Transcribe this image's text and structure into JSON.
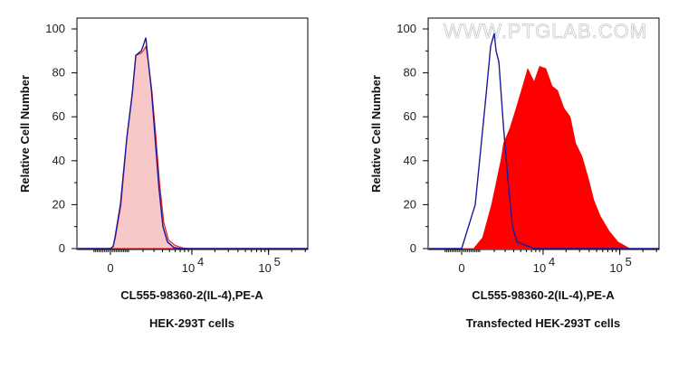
{
  "chart_data": [
    {
      "type": "area",
      "caption": "HEK-293T cells",
      "xlabel": "CL555-98360-2(IL-4),PE-A",
      "ylabel": "Relative Cell Number",
      "x_scale": "biexponential",
      "xlim": [
        -2000,
        320000
      ],
      "ylim": [
        0,
        100
      ],
      "x_ticks": [
        {
          "value": 0,
          "label": "0"
        },
        {
          "value": 10000,
          "label": "10",
          "exp": "4"
        },
        {
          "value": 100000,
          "label": "10",
          "exp": "5"
        }
      ],
      "y_ticks": [
        0,
        20,
        40,
        60,
        80,
        100
      ],
      "grid": false,
      "series": [
        {
          "color": "#f8c8c8",
          "stroke": "#e02020",
          "filled": true,
          "x": [
            -2000,
            0,
            150,
            260,
            560,
            920,
            1250,
            1480,
            1870,
            2010,
            2240,
            2420,
            2780,
            3180,
            3620,
            4150,
            4850,
            5950,
            7600,
            9000,
            320000
          ],
          "y": [
            0,
            0,
            1,
            5,
            20,
            52,
            72,
            88,
            89,
            90,
            92,
            86,
            72,
            52,
            30,
            12,
            4,
            1.5,
            0.3,
            0,
            0
          ]
        },
        {
          "color": "#1a1aa0",
          "filled": false,
          "x": [
            -2000,
            0,
            143,
            240,
            532,
            892,
            1227,
            1468,
            1864,
            2006,
            2235,
            2395,
            2744,
            3128,
            3546,
            4060,
            4692,
            5740,
            7180,
            320000
          ],
          "y": [
            0,
            0,
            1,
            5,
            20,
            50,
            70,
            88,
            90,
            92,
            96,
            88,
            72,
            50,
            28,
            10,
            3,
            0.5,
            0,
            0
          ]
        }
      ]
    },
    {
      "type": "area",
      "caption": "Transfected HEK-293T cells",
      "xlabel": "CL555-98360-2(IL-4),PE-A",
      "ylabel": "Relative Cell Number",
      "watermark": "WWW.PTGLAB.COM",
      "x_scale": "biexponential",
      "xlim": [
        -2000,
        320000
      ],
      "ylim": [
        0,
        100
      ],
      "x_ticks": [
        {
          "value": 0,
          "label": "0"
        },
        {
          "value": 10000,
          "label": "10",
          "exp": "4"
        },
        {
          "value": 100000,
          "label": "10",
          "exp": "5"
        }
      ],
      "y_ticks": [
        0,
        20,
        40,
        60,
        80,
        100
      ],
      "grid": false,
      "series": [
        {
          "color": "#ff0000",
          "filled": true,
          "x": [
            -2000,
            634,
            1169,
            1792,
            2564,
            2835,
            3546,
            4324,
            5118,
            6241,
            7591,
            8976,
            10860,
            13165,
            15523,
            18762,
            22704,
            26734,
            32314,
            39072,
            46112,
            55616,
            72864,
            95568,
            136048,
            320000
          ],
          "y": [
            0,
            0,
            5,
            20,
            40,
            48,
            55,
            64,
            72,
            82,
            76,
            83,
            82,
            74,
            72,
            64,
            60,
            48,
            42,
            32,
            22,
            15,
            8,
            3,
            0,
            0
          ]
        },
        {
          "color": "#1a1aa0",
          "filled": false,
          "x": [
            -2000,
            0,
            736,
            1406,
            1725,
            2006,
            2154,
            2395,
            2835,
            3328,
            3849,
            4444,
            7591,
            320000
          ],
          "y": [
            0,
            0,
            20,
            70,
            92,
            98,
            90,
            85,
            55,
            30,
            10,
            3,
            0,
            0
          ]
        }
      ]
    }
  ]
}
